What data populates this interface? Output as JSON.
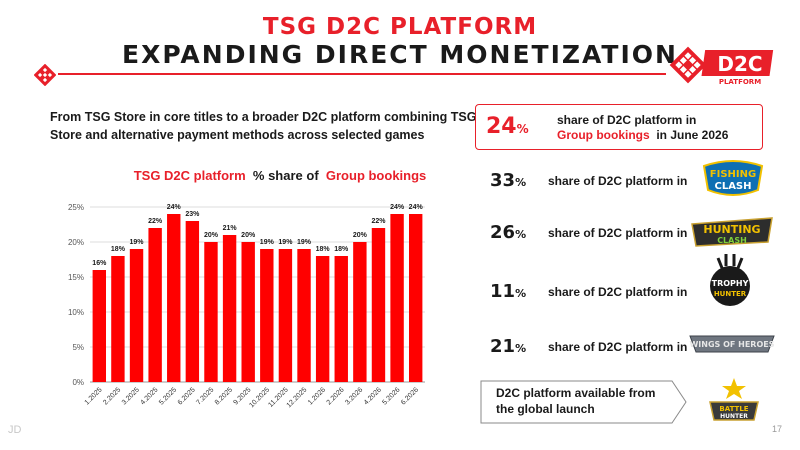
{
  "header": {
    "title_line1": "TSG D2C PLATFORM",
    "title_line2": "EXPANDING DIRECT MONETIZATION",
    "brand_logo_text": "D2C",
    "brand_logo_sub": "PLATFORM"
  },
  "intro_text": "From TSG Store in core titles to a broader D2C platform combining TSG Store and alternative payment methods across selected games",
  "chart_heading": {
    "part1": "TSG D2C platform",
    "part2": "% share of",
    "part3": "Group bookings"
  },
  "chart_data": {
    "type": "bar",
    "categories": [
      "1.2025",
      "2.2025",
      "3.2025",
      "4.2025",
      "5.2025",
      "6.2025",
      "7.2025",
      "8.2025",
      "9.2025",
      "10.2025",
      "11.2025",
      "12.2025",
      "1.2026",
      "2.2026",
      "3.2026",
      "4.2026",
      "5.2026",
      "6.2026"
    ],
    "values": [
      16,
      18,
      19,
      22,
      24,
      23,
      20,
      21,
      20,
      19,
      19,
      19,
      18,
      18,
      20,
      22,
      24,
      24
    ],
    "data_labels": [
      "16%",
      "18%",
      "19%",
      "22%",
      "24%",
      "23%",
      "20%",
      "21%",
      "20%",
      "19%",
      "19%",
      "19%",
      "18%",
      "18%",
      "20%",
      "22%",
      "24%",
      "24%"
    ],
    "ylim": [
      0,
      25
    ],
    "yticks": [
      "0%",
      "5%",
      "10%",
      "15%",
      "20%",
      "25%"
    ],
    "grid": true,
    "color": "#ff0000"
  },
  "highlight": {
    "pct": "24",
    "pct_unit": "%",
    "line1": "share of D2C platform in",
    "line2_red": "Group bookings",
    "line2_rest": "in June 2026"
  },
  "game_rows": [
    {
      "pct": "33",
      "unit": "%",
      "text": "share of D2C platform in",
      "game": "FISHING CLASH",
      "game_line1": "FISHING",
      "game_line2": "CLASH"
    },
    {
      "pct": "26",
      "unit": "%",
      "text": "share of D2C platform in",
      "game": "HUNTING CLASH",
      "game_line1": "HUNTING",
      "game_line2": "CLASH"
    },
    {
      "pct": "11",
      "unit": "%",
      "text": "share of D2C platform in",
      "game": "TROPHY HUNTER",
      "game_line1": "TROPHY",
      "game_line2": "HUNTER"
    },
    {
      "pct": "21",
      "unit": "%",
      "text": "share of D2C platform in",
      "game": "WINGS OF HEROES",
      "game_line1": "WINGS OF HEROES",
      "game_line2": ""
    }
  ],
  "launch": {
    "text": "D2C platform available from the global launch",
    "game": "BATTLE HUNTER",
    "game_line1": "BATTLE",
    "game_line2": "HUNTER"
  },
  "footer": {
    "left": "JD",
    "page": "17"
  },
  "colors": {
    "accent": "#e8202a",
    "text": "#1a1a1a"
  }
}
